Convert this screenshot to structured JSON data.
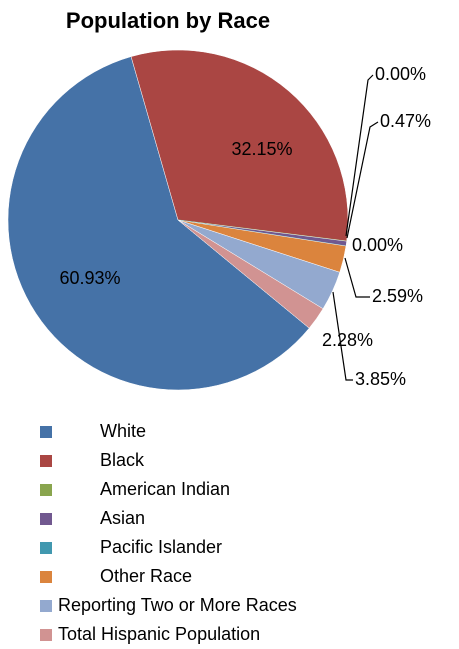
{
  "chart_data": {
    "type": "pie",
    "title": "Population by Race",
    "categories": [
      "White",
      "Black",
      "American Indian",
      "Asian",
      "Pacific Islander",
      "Other Race",
      "Reporting Two or More Races",
      "Total Hispanic Population"
    ],
    "values": [
      60.93,
      32.15,
      0.0,
      0.47,
      0.0,
      2.59,
      3.85,
      2.28
    ],
    "value_labels": [
      "60.93%",
      "32.15%",
      "0.00%",
      "0.47%",
      "0.00%",
      "2.59%",
      "3.85%",
      "2.28%"
    ],
    "colors": [
      "#4572a7",
      "#aa4643",
      "#89a54e",
      "#71588f",
      "#4198af",
      "#db843d",
      "#93a9cf",
      "#d19392"
    ],
    "legend": "bottom"
  }
}
